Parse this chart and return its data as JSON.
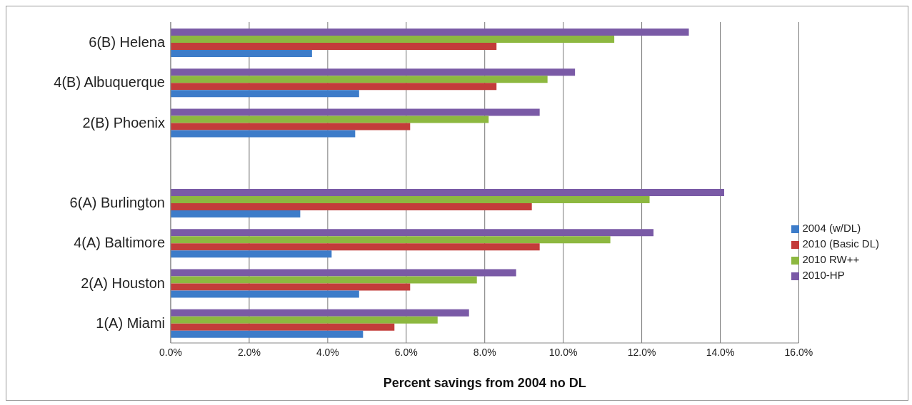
{
  "chart_data": {
    "type": "bar",
    "orientation": "horizontal",
    "xlabel": "Percent savings from 2004 no DL",
    "categories": [
      "6(B) Helena",
      "4(B) Albuquerque",
      "2(B) Phoenix",
      null,
      "6(A) Burlington",
      "4(A) Baltimore",
      "2(A) Houston",
      "1(A) Miami"
    ],
    "series": [
      {
        "name": "2010-HP",
        "color": "#7a5aa6",
        "values": [
          13.2,
          10.3,
          9.4,
          null,
          14.1,
          12.3,
          8.8,
          7.6
        ]
      },
      {
        "name": "2010 RW++",
        "color": "#8db840",
        "values": [
          11.3,
          9.6,
          8.1,
          null,
          12.2,
          11.2,
          7.8,
          6.8
        ]
      },
      {
        "name": "2010 (Basic DL)",
        "color": "#c33c3a",
        "values": [
          8.3,
          8.3,
          6.1,
          null,
          9.2,
          9.4,
          6.1,
          5.7
        ]
      },
      {
        "name": "2004 (w/DL)",
        "color": "#3d7cc9",
        "values": [
          3.6,
          4.8,
          4.7,
          null,
          3.3,
          4.1,
          4.8,
          4.9
        ]
      }
    ],
    "xlim": [
      0,
      16
    ],
    "xticks": [
      {
        "value": 0,
        "label": "0.0%"
      },
      {
        "value": 2,
        "label": "2.0%"
      },
      {
        "value": 4,
        "label": "4.0%"
      },
      {
        "value": 6,
        "label": "6.0%"
      },
      {
        "value": 8,
        "label": "8.0%"
      },
      {
        "value": 10,
        "label": "10.0%"
      },
      {
        "value": 12,
        "label": "12.0%"
      },
      {
        "value": 14,
        "label": "14.0%"
      },
      {
        "value": 16,
        "label": "16.0%"
      }
    ],
    "grid": "x",
    "legend": "right"
  }
}
